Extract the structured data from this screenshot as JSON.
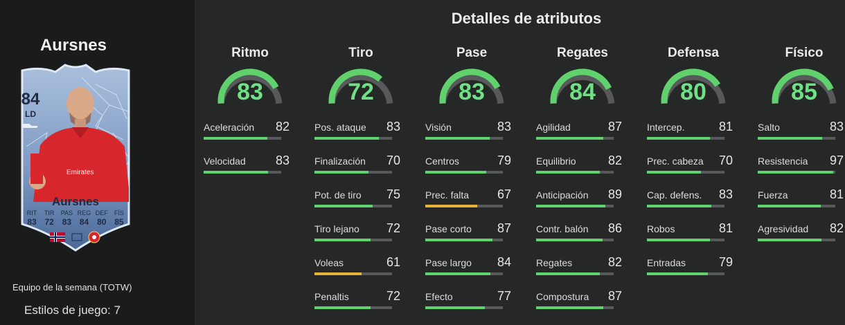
{
  "player": {
    "name": "Aursnes",
    "card_rating": "84",
    "card_position": "LD",
    "card_name": "Aursnes",
    "card_stats": [
      {
        "abbr": "RIT",
        "value": "83"
      },
      {
        "abbr": "TIR",
        "value": "72"
      },
      {
        "abbr": "PAS",
        "value": "83"
      },
      {
        "abbr": "REG",
        "value": "84"
      },
      {
        "abbr": "DEF",
        "value": "80"
      },
      {
        "abbr": "FÍS",
        "value": "85"
      }
    ],
    "team_text": "Equipo de la semana (TOTW)",
    "playstyles_text": "Estilos de juego: 7"
  },
  "colors": {
    "green": "#5fd26e",
    "yellow": "#e8b23a",
    "track": "#58595a",
    "card_top": "#9fb6d6",
    "card_bottom": "#3e5c8c"
  },
  "details": {
    "title": "Detalles de atributos",
    "categories": [
      {
        "name": "Ritmo",
        "value": 83,
        "attributes": [
          {
            "label": "Aceleración",
            "value": 82
          },
          {
            "label": "Velocidad",
            "value": 83
          }
        ]
      },
      {
        "name": "Tiro",
        "value": 72,
        "attributes": [
          {
            "label": "Pos. ataque",
            "value": 83
          },
          {
            "label": "Finalización",
            "value": 70
          },
          {
            "label": "Pot. de tiro",
            "value": 75
          },
          {
            "label": "Tiro lejano",
            "value": 72
          },
          {
            "label": "Voleas",
            "value": 61
          },
          {
            "label": "Penaltis",
            "value": 72
          }
        ]
      },
      {
        "name": "Pase",
        "value": 83,
        "attributes": [
          {
            "label": "Visión",
            "value": 83
          },
          {
            "label": "Centros",
            "value": 79
          },
          {
            "label": "Prec. falta",
            "value": 67
          },
          {
            "label": "Pase corto",
            "value": 87
          },
          {
            "label": "Pase largo",
            "value": 84
          },
          {
            "label": "Efecto",
            "value": 77
          }
        ]
      },
      {
        "name": "Regates",
        "value": 84,
        "attributes": [
          {
            "label": "Agilidad",
            "value": 87
          },
          {
            "label": "Equilibrio",
            "value": 82
          },
          {
            "label": "Anticipación",
            "value": 89
          },
          {
            "label": "Contr. balón",
            "value": 86
          },
          {
            "label": "Regates",
            "value": 82
          },
          {
            "label": "Compostura",
            "value": 87
          }
        ]
      },
      {
        "name": "Defensa",
        "value": 80,
        "attributes": [
          {
            "label": "Intercep.",
            "value": 81
          },
          {
            "label": "Prec. cabeza",
            "value": 70
          },
          {
            "label": "Cap. defens.",
            "value": 83
          },
          {
            "label": "Robos",
            "value": 81
          },
          {
            "label": "Entradas",
            "value": 79
          }
        ]
      },
      {
        "name": "Físico",
        "value": 85,
        "attributes": [
          {
            "label": "Salto",
            "value": 83
          },
          {
            "label": "Resistencia",
            "value": 97
          },
          {
            "label": "Fuerza",
            "value": 81
          },
          {
            "label": "Agresividad",
            "value": 82
          }
        ]
      }
    ]
  }
}
